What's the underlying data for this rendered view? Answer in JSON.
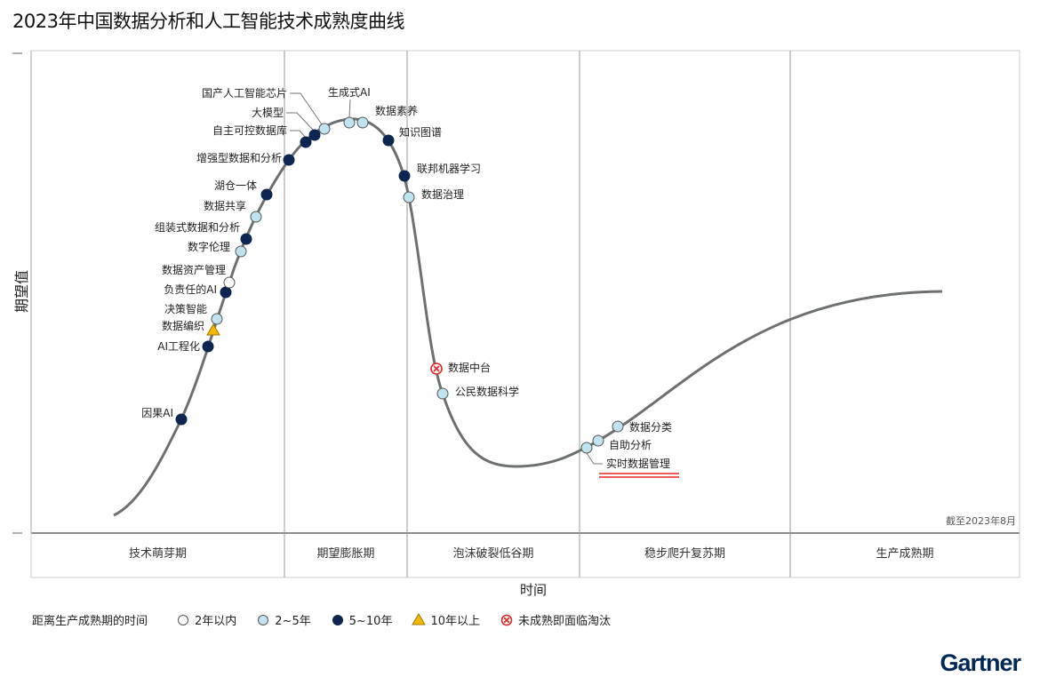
{
  "title": "2023年中国数据分析和人工智能技术成熟度曲线",
  "chart_data": {
    "type": "hype-cycle",
    "title": "2023年中国数据分析和人工智能技术成熟度曲线",
    "xlabel": "时间",
    "ylabel": "期望值",
    "as_of": "截至2023年8月",
    "phases": [
      "技术萌芽期",
      "期望膨胀期",
      "泡沫破裂低谷期",
      "稳步爬升复苏期",
      "生产成熟期"
    ],
    "legend_title": "距离生产成熟期的时间",
    "legend": [
      {
        "key": "lt2",
        "label": "2年以内",
        "color": "#ffffff"
      },
      {
        "key": "2to5",
        "label": "2~5年",
        "color": "#bfe3f0"
      },
      {
        "key": "5to10",
        "label": "5~10年",
        "color": "#0c2651"
      },
      {
        "key": "gt10",
        "label": "10年以上",
        "color": "#f5b800"
      },
      {
        "key": "obsolete",
        "label": "未成熟即面临淘汰",
        "color": "#e52521"
      }
    ],
    "items": [
      {
        "name": "因果AI",
        "phase": "技术萌芽期",
        "maturity": "5to10"
      },
      {
        "name": "AI工程化",
        "phase": "技术萌芽期",
        "maturity": "5to10"
      },
      {
        "name": "数据编织",
        "phase": "技术萌芽期",
        "maturity": "gt10"
      },
      {
        "name": "决策智能",
        "phase": "技术萌芽期",
        "maturity": "2to5"
      },
      {
        "name": "负责任的AI",
        "phase": "技术萌芽期",
        "maturity": "5to10"
      },
      {
        "name": "数据资产管理",
        "phase": "技术萌芽期",
        "maturity": "lt2"
      },
      {
        "name": "数字伦理",
        "phase": "技术萌芽期",
        "maturity": "2to5"
      },
      {
        "name": "组装式数据和分析",
        "phase": "技术萌芽期",
        "maturity": "5to10"
      },
      {
        "name": "数据共享",
        "phase": "技术萌芽期",
        "maturity": "2to5"
      },
      {
        "name": "湖仓一体",
        "phase": "技术萌芽期",
        "maturity": "5to10"
      },
      {
        "name": "增强型数据和分析",
        "phase": "期望膨胀期",
        "maturity": "5to10"
      },
      {
        "name": "自主可控数据库",
        "phase": "期望膨胀期",
        "maturity": "5to10"
      },
      {
        "name": "大模型",
        "phase": "期望膨胀期",
        "maturity": "5to10"
      },
      {
        "name": "国产人工智能芯片",
        "phase": "期望膨胀期",
        "maturity": "2to5"
      },
      {
        "name": "生成式AI",
        "phase": "期望膨胀期",
        "maturity": "2to5"
      },
      {
        "name": "数据素养",
        "phase": "期望膨胀期",
        "maturity": "2to5"
      },
      {
        "name": "知识图谱",
        "phase": "期望膨胀期",
        "maturity": "5to10"
      },
      {
        "name": "联邦机器学习",
        "phase": "期望膨胀期",
        "maturity": "5to10"
      },
      {
        "name": "数据治理",
        "phase": "泡沫破裂低谷期",
        "maturity": "2to5"
      },
      {
        "name": "数据中台",
        "phase": "泡沫破裂低谷期",
        "maturity": "obsolete"
      },
      {
        "name": "公民数据科学",
        "phase": "泡沫破裂低谷期",
        "maturity": "2to5"
      },
      {
        "name": "实时数据管理",
        "phase": "稳步爬升复苏期",
        "maturity": "2to5",
        "highlighted": true
      },
      {
        "name": "自助分析",
        "phase": "稳步爬升复苏期",
        "maturity": "2to5"
      },
      {
        "name": "数据分类",
        "phase": "稳步爬升复苏期",
        "maturity": "2to5"
      }
    ]
  },
  "brand": "Gartner"
}
